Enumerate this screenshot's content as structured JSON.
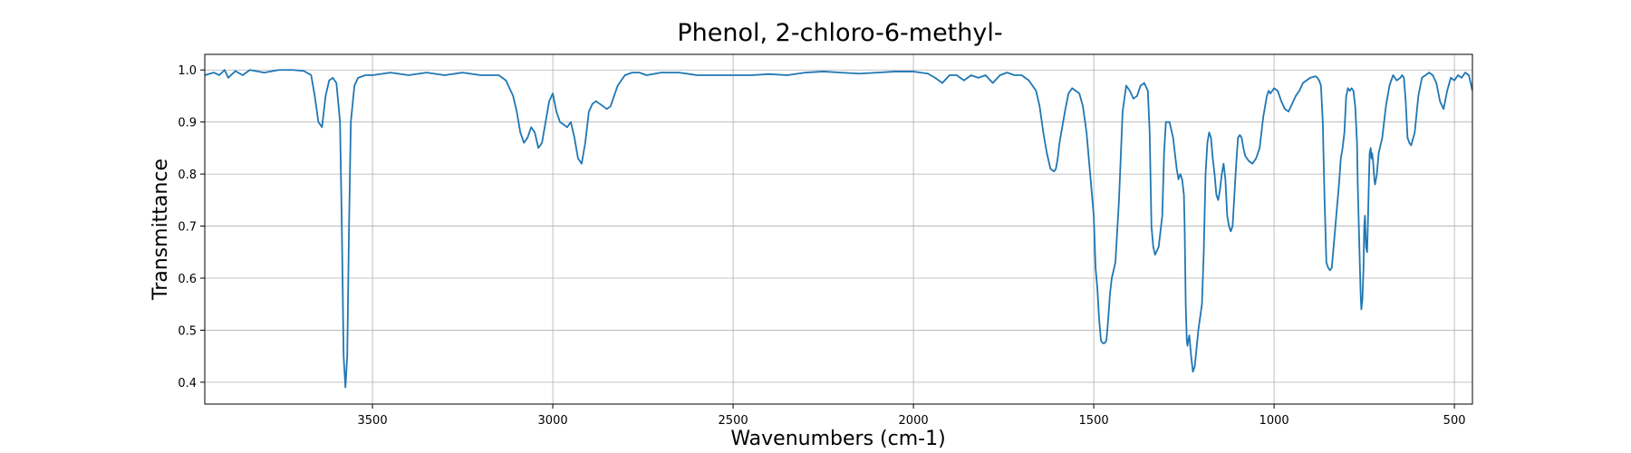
{
  "chart_data": {
    "type": "line",
    "title": "Phenol, 2-chloro-6-methyl-",
    "xlabel": "Wavenumbers (cm-1)",
    "ylabel": "Transmittance",
    "xlim": [
      3965,
      450
    ],
    "ylim": [
      0.358,
      1.03
    ],
    "x_reversed": true,
    "grid": true,
    "line_color": "#1f77b4",
    "grid_color": "#b0b0b0",
    "xticks": [
      3500,
      3000,
      2500,
      2000,
      1500,
      1000,
      500
    ],
    "xtick_labels": [
      "3500",
      "3000",
      "2500",
      "2000",
      "1500",
      "1000",
      "500"
    ],
    "yticks": [
      0.4,
      0.5,
      0.6,
      0.7,
      0.8,
      0.9,
      1.0
    ],
    "ytick_labels": [
      "0.4",
      "0.5",
      "0.6",
      "0.7",
      "0.8",
      "0.9",
      "1.0"
    ],
    "series": [
      {
        "x": [
          3965,
          3940,
          3925,
          3910,
          3900,
          3880,
          3860,
          3840,
          3800,
          3760,
          3720,
          3690,
          3670,
          3660,
          3650,
          3640,
          3630,
          3620,
          3610,
          3600,
          3590,
          3585,
          3580,
          3575,
          3570,
          3565,
          3560,
          3550,
          3540,
          3520,
          3500,
          3450,
          3400,
          3350,
          3300,
          3250,
          3200,
          3150,
          3130,
          3110,
          3100,
          3090,
          3080,
          3070,
          3060,
          3050,
          3040,
          3030,
          3020,
          3010,
          3000,
          2990,
          2980,
          2970,
          2960,
          2950,
          2940,
          2930,
          2920,
          2910,
          2900,
          2890,
          2880,
          2870,
          2860,
          2850,
          2840,
          2820,
          2800,
          2780,
          2760,
          2740,
          2700,
          2650,
          2600,
          2550,
          2500,
          2450,
          2400,
          2350,
          2300,
          2250,
          2200,
          2150,
          2100,
          2050,
          2000,
          1960,
          1940,
          1920,
          1900,
          1880,
          1860,
          1840,
          1820,
          1800,
          1780,
          1760,
          1740,
          1720,
          1700,
          1680,
          1670,
          1660,
          1650,
          1640,
          1630,
          1620,
          1610,
          1605,
          1600,
          1595,
          1590,
          1580,
          1570,
          1560,
          1550,
          1540,
          1530,
          1520,
          1510,
          1500,
          1495,
          1490,
          1485,
          1480,
          1475,
          1470,
          1465,
          1460,
          1455,
          1450,
          1440,
          1430,
          1420,
          1410,
          1400,
          1390,
          1380,
          1370,
          1360,
          1350,
          1345,
          1340,
          1335,
          1330,
          1320,
          1310,
          1305,
          1300,
          1290,
          1280,
          1270,
          1265,
          1260,
          1255,
          1250,
          1248,
          1245,
          1242,
          1240,
          1238,
          1235,
          1230,
          1225,
          1220,
          1210,
          1200,
          1195,
          1190,
          1185,
          1180,
          1175,
          1170,
          1165,
          1160,
          1155,
          1150,
          1145,
          1140,
          1135,
          1130,
          1125,
          1120,
          1115,
          1110,
          1105,
          1100,
          1095,
          1090,
          1085,
          1080,
          1075,
          1070,
          1060,
          1050,
          1040,
          1030,
          1020,
          1015,
          1010,
          1005,
          1000,
          990,
          980,
          970,
          960,
          950,
          940,
          930,
          920,
          910,
          900,
          890,
          885,
          880,
          875,
          870,
          865,
          860,
          855,
          850,
          845,
          840,
          830,
          820,
          815,
          810,
          805,
          800,
          795,
          790,
          785,
          780,
          775,
          770,
          768,
          765,
          762,
          760,
          758,
          755,
          752,
          750,
          748,
          745,
          742,
          740,
          737,
          735,
          732,
          730,
          728,
          725,
          722,
          720,
          715,
          710,
          700,
          690,
          680,
          670,
          660,
          650,
          645,
          640,
          635,
          630,
          625,
          620,
          610,
          600,
          590,
          580,
          570,
          560,
          550,
          540,
          530,
          520,
          510,
          500,
          490,
          480,
          470,
          460,
          450
        ],
        "y": [
          0.99,
          0.995,
          0.99,
          1.0,
          0.985,
          0.998,
          0.99,
          1.0,
          0.995,
          1.0,
          1.0,
          0.998,
          0.99,
          0.95,
          0.9,
          0.89,
          0.95,
          0.98,
          0.985,
          0.975,
          0.9,
          0.7,
          0.45,
          0.39,
          0.45,
          0.7,
          0.9,
          0.97,
          0.985,
          0.99,
          0.99,
          0.995,
          0.99,
          0.995,
          0.99,
          0.995,
          0.99,
          0.99,
          0.98,
          0.95,
          0.92,
          0.88,
          0.86,
          0.87,
          0.89,
          0.88,
          0.85,
          0.86,
          0.9,
          0.94,
          0.955,
          0.92,
          0.9,
          0.895,
          0.89,
          0.9,
          0.87,
          0.83,
          0.82,
          0.86,
          0.92,
          0.935,
          0.94,
          0.935,
          0.93,
          0.925,
          0.93,
          0.97,
          0.99,
          0.995,
          0.995,
          0.99,
          0.995,
          0.995,
          0.99,
          0.99,
          0.99,
          0.99,
          0.992,
          0.99,
          0.995,
          0.997,
          0.995,
          0.993,
          0.995,
          0.997,
          0.997,
          0.993,
          0.985,
          0.975,
          0.99,
          0.99,
          0.98,
          0.99,
          0.985,
          0.99,
          0.975,
          0.99,
          0.995,
          0.99,
          0.99,
          0.98,
          0.97,
          0.96,
          0.93,
          0.88,
          0.84,
          0.81,
          0.805,
          0.81,
          0.83,
          0.86,
          0.88,
          0.92,
          0.955,
          0.965,
          0.96,
          0.955,
          0.93,
          0.88,
          0.8,
          0.72,
          0.62,
          0.58,
          0.52,
          0.48,
          0.475,
          0.475,
          0.48,
          0.52,
          0.57,
          0.6,
          0.63,
          0.75,
          0.92,
          0.97,
          0.96,
          0.945,
          0.95,
          0.97,
          0.975,
          0.96,
          0.88,
          0.7,
          0.66,
          0.645,
          0.66,
          0.72,
          0.84,
          0.9,
          0.9,
          0.87,
          0.81,
          0.79,
          0.8,
          0.79,
          0.76,
          0.7,
          0.55,
          0.48,
          0.47,
          0.48,
          0.49,
          0.45,
          0.42,
          0.43,
          0.5,
          0.55,
          0.65,
          0.8,
          0.86,
          0.88,
          0.87,
          0.83,
          0.8,
          0.76,
          0.75,
          0.77,
          0.8,
          0.82,
          0.79,
          0.72,
          0.7,
          0.69,
          0.7,
          0.76,
          0.82,
          0.87,
          0.875,
          0.87,
          0.85,
          0.835,
          0.83,
          0.825,
          0.82,
          0.83,
          0.85,
          0.91,
          0.95,
          0.96,
          0.955,
          0.96,
          0.965,
          0.96,
          0.94,
          0.925,
          0.92,
          0.935,
          0.95,
          0.96,
          0.975,
          0.98,
          0.985,
          0.987,
          0.988,
          0.985,
          0.98,
          0.97,
          0.9,
          0.75,
          0.63,
          0.62,
          0.615,
          0.62,
          0.7,
          0.78,
          0.83,
          0.85,
          0.88,
          0.95,
          0.965,
          0.96,
          0.965,
          0.96,
          0.93,
          0.86,
          0.78,
          0.7,
          0.62,
          0.57,
          0.54,
          0.56,
          0.62,
          0.7,
          0.72,
          0.66,
          0.65,
          0.7,
          0.79,
          0.84,
          0.85,
          0.83,
          0.84,
          0.82,
          0.79,
          0.78,
          0.8,
          0.84,
          0.87,
          0.93,
          0.97,
          0.99,
          0.98,
          0.985,
          0.99,
          0.985,
          0.94,
          0.87,
          0.86,
          0.855,
          0.88,
          0.95,
          0.985,
          0.99,
          0.995,
          0.99,
          0.975,
          0.94,
          0.925,
          0.96,
          0.985,
          0.98,
          0.99,
          0.985,
          0.995,
          0.99,
          0.96
        ]
      }
    ]
  }
}
